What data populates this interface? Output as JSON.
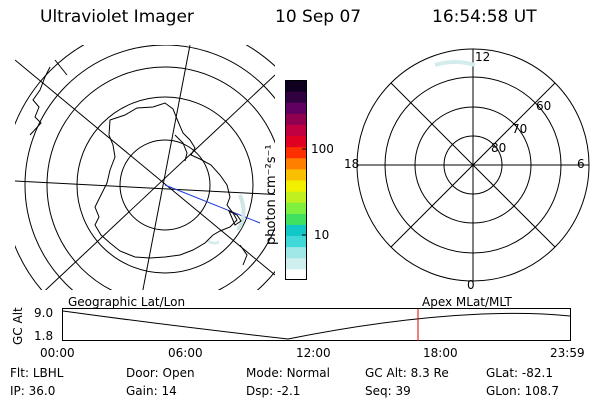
{
  "header": {
    "title": "Ultraviolet Imager",
    "date": "10 Sep 07",
    "time": "16:54:58 UT"
  },
  "colorbar": {
    "unit_label": "photon cm⁻²s⁻¹",
    "tick_labels": [
      "100",
      "10"
    ],
    "colors": [
      "#ffffff",
      "#d0f0f0",
      "#a0e8e8",
      "#40d8d8",
      "#10c8c8",
      "#40e060",
      "#80f040",
      "#c0f020",
      "#f0f000",
      "#f8c000",
      "#ff8000",
      "#ff3000",
      "#e00020",
      "#c00040",
      "#900050",
      "#600060",
      "#300040",
      "#100020"
    ]
  },
  "left_map": {
    "label": "Geographic Lat/Lon"
  },
  "right_map": {
    "label": "Apex MLat/MLT",
    "mlt_labels": {
      "top": "12",
      "bottom": "0",
      "left": "18",
      "right": "6"
    },
    "lat_labels": [
      "60",
      "70",
      "80"
    ]
  },
  "strip": {
    "axis_label": "GC Alt",
    "y_ticks": [
      "9.0",
      "1.8"
    ],
    "time_ticks": [
      "00:00",
      "06:00",
      "12:00",
      "18:00",
      "23:59"
    ],
    "marker_color": "#e00000"
  },
  "info": {
    "row1": [
      {
        "label": "Flt:",
        "value": "LBHL"
      },
      {
        "label": "Door:",
        "value": "Open"
      },
      {
        "label": "Mode:",
        "value": "Normal"
      },
      {
        "label": "GC Alt:",
        "value": "8.3 Re"
      },
      {
        "label": "GLat:",
        "value": "-82.1"
      }
    ],
    "row2": [
      {
        "label": "IP:",
        "value": "36.0"
      },
      {
        "label": "Gain:",
        "value": "14"
      },
      {
        "label": "Dsp:",
        "value": "-2.1"
      },
      {
        "label": "Seq:",
        "value": "39"
      },
      {
        "label": "GLon:",
        "value": "108.7"
      }
    ]
  }
}
